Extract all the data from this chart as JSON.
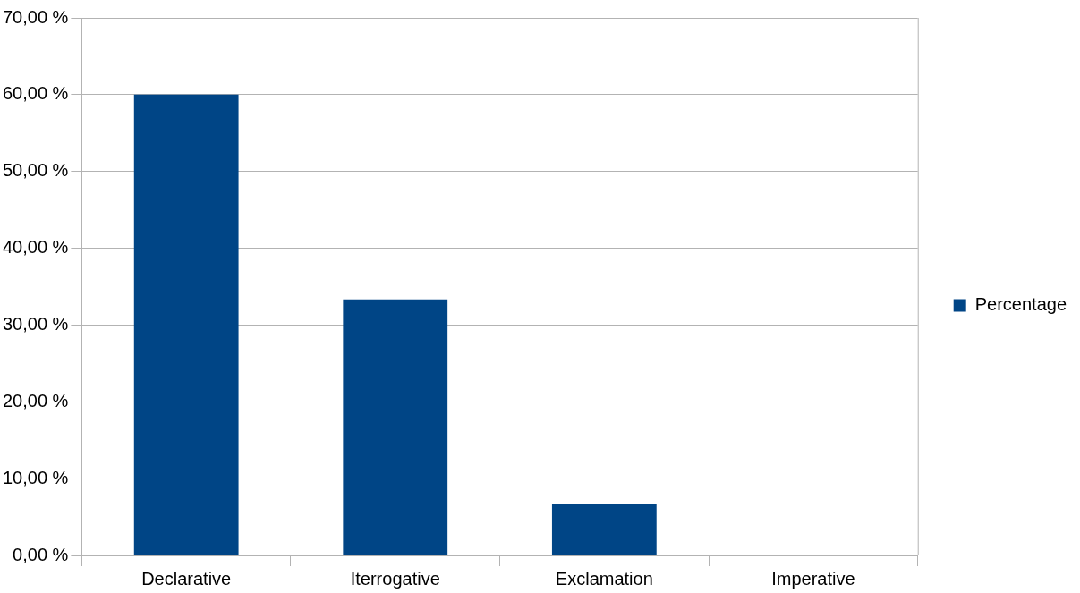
{
  "chart_data": {
    "type": "bar",
    "categories": [
      "Declarative",
      "Iterrogative",
      "Exclamation",
      "Imperative"
    ],
    "series": [
      {
        "name": "Percentage",
        "color": "#004586",
        "values": [
          60,
          33.33,
          6.67,
          0
        ]
      }
    ],
    "ylim": [
      0,
      70
    ],
    "yticks": [
      {
        "value": 0,
        "label": "0,00 %"
      },
      {
        "value": 10,
        "label": "10,00 %"
      },
      {
        "value": 20,
        "label": "20,00 %"
      },
      {
        "value": 30,
        "label": "30,00 %"
      },
      {
        "value": 40,
        "label": "40,00 %"
      },
      {
        "value": 50,
        "label": "50,00 %"
      },
      {
        "value": 60,
        "label": "60,00 %"
      },
      {
        "value": 70,
        "label": "70,00 %"
      }
    ],
    "grid": "y",
    "legend": "right"
  }
}
